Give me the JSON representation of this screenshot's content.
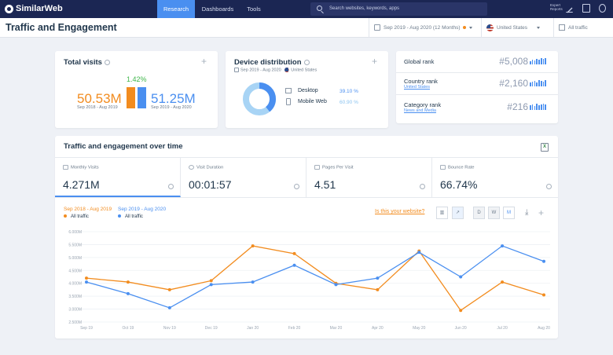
{
  "nav": {
    "brand": "SimilarWeb",
    "tabs": [
      "Research",
      "Dashboards",
      "Tools"
    ],
    "search_placeholder": "Search websites, keywords, apps",
    "expert_reports": "Expert Reports"
  },
  "header": {
    "title": "Traffic and Engagement",
    "date_range": "Sep 2019 - Aug 2020 (12 Months)",
    "country": "United States",
    "traffic": "All traffic"
  },
  "total_visits": {
    "title": "Total visits",
    "growth": "1.42%",
    "prev_value": "50.53M",
    "prev_period": "Sep 2018 - Aug 2019",
    "curr_value": "51.25M",
    "curr_period": "Sep 2019 - Aug 2020",
    "bar_ratio_prev": 0.986,
    "bar_ratio_curr": 1.0
  },
  "device": {
    "title": "Device distribution",
    "period": "Sep 2019 - Aug 2020",
    "country": "United States",
    "items": [
      {
        "label": "Desktop",
        "value": "39.10 %"
      },
      {
        "label": "Mobile Web",
        "value": "60.90 %"
      }
    ],
    "desktop_share": 39.1,
    "mobile_share": 60.9
  },
  "ranks": [
    {
      "label": "Global rank",
      "sub": "",
      "value": "#5,008"
    },
    {
      "label": "Country rank",
      "sub": "United States",
      "value": "#2,160"
    },
    {
      "label": "Category rank",
      "sub": "News and Media",
      "value": "#216"
    }
  ],
  "engagement": {
    "title": "Traffic and engagement over time",
    "metrics": [
      {
        "label": "Monthly Visits",
        "value": "4.271M"
      },
      {
        "label": "Visit Duration",
        "value": "00:01:57"
      },
      {
        "label": "Pages Per Visit",
        "value": "4.51"
      },
      {
        "label": "Bounce Rate",
        "value": "66.74%"
      }
    ],
    "is_your_website": "Is this your website?",
    "granularity": [
      "D",
      "W",
      "M"
    ]
  },
  "colors": {
    "accent": "#4a8ff0",
    "orange": "#f28c1f",
    "navy": "#1b2653"
  },
  "chart_data": {
    "type": "line",
    "x": [
      "Sep 19",
      "Oct 19",
      "Nov 19",
      "Dec 19",
      "Jan 20",
      "Feb 20",
      "Mar 20",
      "Apr 20",
      "May 20",
      "Jun 20",
      "Jul 20",
      "Aug 20"
    ],
    "ylim": [
      2.5,
      6.0
    ],
    "yticks": [
      "2.500M",
      "3.000M",
      "3.500M",
      "4.000M",
      "4.500M",
      "5.000M",
      "5.500M",
      "6.000M"
    ],
    "legend": "top-left",
    "grid": true,
    "series": [
      {
        "name": "Sep 2018 - Aug 2019",
        "sub": "All traffic",
        "color": "#f28c1f",
        "values": [
          4.2,
          4.05,
          3.75,
          4.1,
          5.45,
          5.15,
          4.0,
          3.75,
          5.25,
          2.95,
          4.05,
          3.55
        ]
      },
      {
        "name": "Sep 2019 - Aug 2020",
        "sub": "All traffic",
        "color": "#4a8ff0",
        "values": [
          4.05,
          3.6,
          3.05,
          3.95,
          4.05,
          4.7,
          3.95,
          4.2,
          5.2,
          4.25,
          5.45,
          4.85
        ]
      }
    ]
  }
}
